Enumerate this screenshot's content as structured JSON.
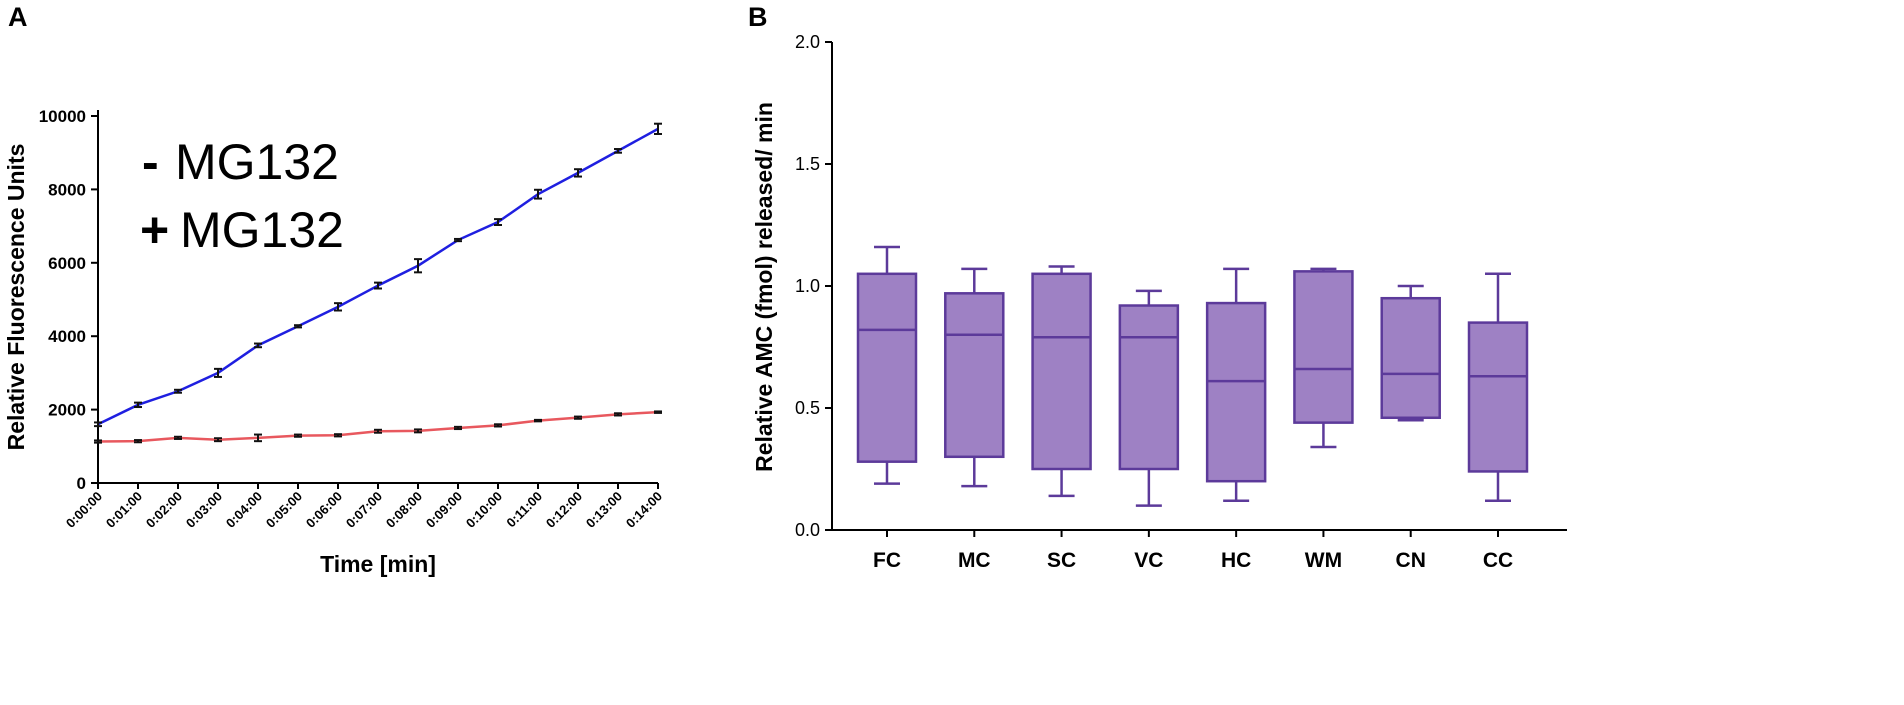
{
  "chart_data": [
    {
      "panel": "A",
      "type": "line",
      "xlabel": "Time [min]",
      "ylabel": "Relative Fluorescence Units",
      "ylim": [
        0,
        10000
      ],
      "yticks": [
        0,
        2000,
        4000,
        6000,
        8000,
        10000
      ],
      "categories": [
        "0:00:00",
        "0:01:00",
        "0:02:00",
        "0:03:00",
        "0:04:00",
        "0:05:00",
        "0:06:00",
        "0:07:00",
        "0:08:00",
        "0:09:00",
        "0:10:00",
        "0:11:00",
        "0:12:00",
        "0:13:00",
        "0:14:00"
      ],
      "legend": [
        {
          "symbol": "-",
          "label": "MG132",
          "color": "#1a6fc4"
        },
        {
          "symbol": "+",
          "label": "MG132",
          "color": "#e8201c"
        }
      ],
      "series": [
        {
          "name": "- MG132",
          "color": "#1f1fe0",
          "values": [
            1600,
            2130,
            2500,
            3000,
            3750,
            4270,
            4800,
            5380,
            5920,
            6620,
            7110,
            7870,
            8450,
            9050,
            9650
          ],
          "errors": [
            50,
            60,
            40,
            110,
            50,
            30,
            100,
            80,
            180,
            30,
            80,
            120,
            100,
            50,
            140
          ]
        },
        {
          "name": "+ MG132",
          "color": "#e8585e",
          "values": [
            1130,
            1140,
            1230,
            1180,
            1230,
            1290,
            1300,
            1410,
            1420,
            1500,
            1570,
            1700,
            1780,
            1870,
            1930
          ],
          "errors": [
            30,
            30,
            30,
            40,
            90,
            30,
            30,
            40,
            40,
            30,
            30,
            20,
            30,
            30,
            20
          ]
        }
      ]
    },
    {
      "panel": "B",
      "type": "box",
      "xlabel": "",
      "ylabel": "Relative AMC (fmol) released/ min",
      "ylim": [
        0,
        2.0
      ],
      "yticks": [
        "0.0",
        "0.5",
        "1.0",
        "1.5",
        "2.0"
      ],
      "categories": [
        "FC",
        "MC",
        "SC",
        "VC",
        "HC",
        "WM",
        "CN",
        "CC"
      ],
      "fill": "#9e81c4",
      "stroke": "#5c3a9a",
      "boxes": [
        {
          "min": 0.19,
          "q1": 0.28,
          "median": 0.82,
          "q3": 1.05,
          "max": 1.16
        },
        {
          "min": 0.18,
          "q1": 0.3,
          "median": 0.8,
          "q3": 0.97,
          "max": 1.07
        },
        {
          "min": 0.14,
          "q1": 0.25,
          "median": 0.79,
          "q3": 1.05,
          "max": 1.08
        },
        {
          "min": 0.1,
          "q1": 0.25,
          "median": 0.79,
          "q3": 0.92,
          "max": 0.98
        },
        {
          "min": 0.12,
          "q1": 0.2,
          "median": 0.61,
          "q3": 0.93,
          "max": 1.07
        },
        {
          "min": 0.34,
          "q1": 0.44,
          "median": 0.66,
          "q3": 1.06,
          "max": 1.07
        },
        {
          "min": 0.45,
          "q1": 0.46,
          "median": 0.64,
          "q3": 0.95,
          "max": 1.0
        },
        {
          "min": 0.12,
          "q1": 0.24,
          "median": 0.63,
          "q3": 0.85,
          "max": 1.05
        }
      ]
    }
  ]
}
